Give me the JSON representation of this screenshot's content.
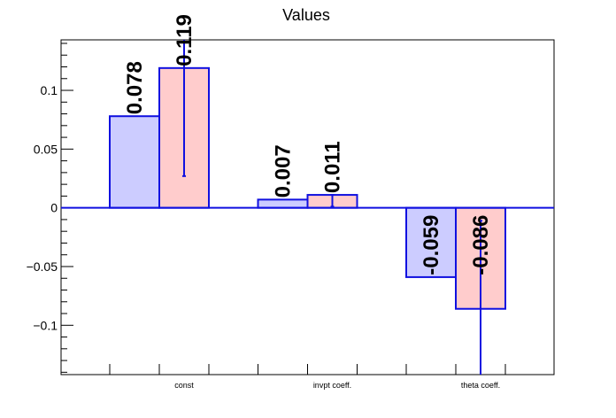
{
  "chart_data": {
    "type": "bar",
    "title": "Values",
    "xlabel": "",
    "ylabel": "",
    "categories": [
      "const",
      "invpt coeff.",
      "theta coeff."
    ],
    "ylim": [
      -0.142,
      0.143
    ],
    "yticks": [
      -0.1,
      -0.05,
      0,
      0.05,
      0.1
    ],
    "ytick_labels": [
      "−0.1",
      "−0.05",
      "0",
      "0.05",
      "0.1"
    ],
    "grid": false,
    "series": [
      {
        "values": [
          0.078,
          0.007,
          -0.059
        ],
        "labels": [
          "0.078",
          "0.007",
          "-0.059"
        ],
        "errors": [
          null,
          null,
          null
        ],
        "fill": "#ccccff",
        "stroke": "#1010e0"
      },
      {
        "values": [
          0.119,
          0.011,
          -0.086
        ],
        "labels": [
          "0.119",
          "0.011",
          "-0.086"
        ],
        "errors": [
          [
            0.027,
            0.144
          ],
          [
            0.001,
            0.011
          ],
          [
            -0.144,
            -0.011
          ]
        ],
        "fill": "#ffcccc",
        "stroke": "#1010e0"
      }
    ]
  }
}
